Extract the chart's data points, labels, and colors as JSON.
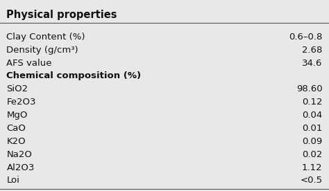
{
  "title": "Physical properties",
  "header_line_color": "#555555",
  "bg_color": "#e8e8e8",
  "text_color": "#111111",
  "rows": [
    {
      "label": "Clay Content (%)",
      "value": "0.6–0.8",
      "is_section": false
    },
    {
      "label": "Density (g/cm³)",
      "value": "2.68",
      "is_section": false
    },
    {
      "label": "AFS value",
      "value": "34.6",
      "is_section": false
    },
    {
      "label": "Chemical composition (%)",
      "value": "",
      "is_section": true
    },
    {
      "label": "SiO2",
      "value": "98.60",
      "is_section": false
    },
    {
      "label": "Fe2O3",
      "value": "0.12",
      "is_section": false
    },
    {
      "label": "MgO",
      "value": "0.04",
      "is_section": false
    },
    {
      "label": "CaO",
      "value": "0.01",
      "is_section": false
    },
    {
      "label": "K2O",
      "value": "0.09",
      "is_section": false
    },
    {
      "label": "Na2O",
      "value": "0.02",
      "is_section": false
    },
    {
      "label": "Al2O3",
      "value": "1.12",
      "is_section": false
    },
    {
      "label": "Loi",
      "value": "<0.5",
      "is_section": false
    }
  ],
  "title_fontsize": 10.5,
  "body_fontsize": 9.5,
  "fig_width": 4.74,
  "fig_height": 2.76,
  "dpi": 100
}
